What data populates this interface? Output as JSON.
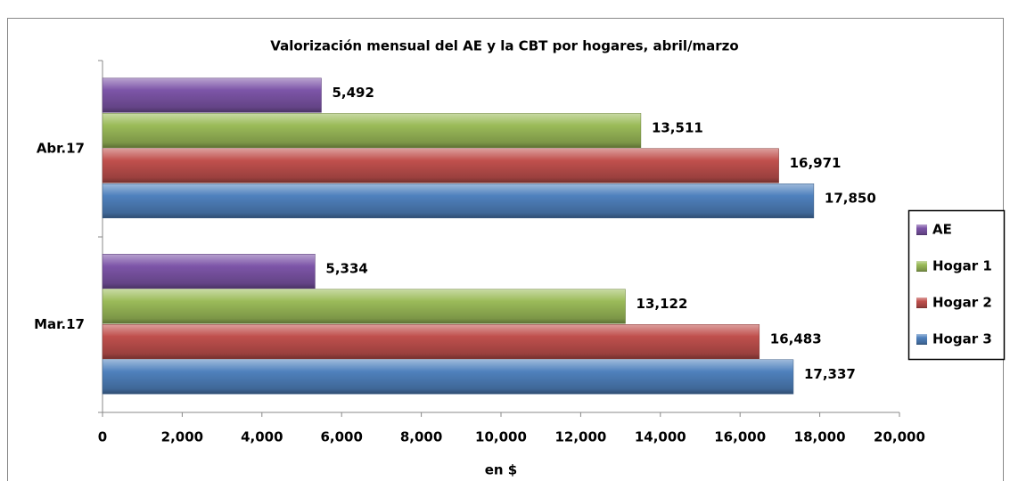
{
  "chart_data": {
    "type": "bar",
    "orientation": "horizontal",
    "title": "Valorización mensual del AE y la CBT por hogares, abril/marzo",
    "x_label": "en $",
    "categories": [
      "Abr.17",
      "Mar.17"
    ],
    "series": [
      {
        "name": "AE",
        "color": "#7d55a8",
        "values": [
          5492,
          5334
        ],
        "value_labels": [
          "5,492",
          "5,334"
        ]
      },
      {
        "name": "Hogar 1",
        "color": "#9bbb59",
        "values": [
          13511,
          13122
        ],
        "value_labels": [
          "13,511",
          "13,122"
        ]
      },
      {
        "name": "Hogar 2",
        "color": "#c0504d",
        "values": [
          16971,
          16483
        ],
        "value_labels": [
          "16,971",
          "16,483"
        ]
      },
      {
        "name": "Hogar 3",
        "color": "#4f81bd",
        "values": [
          17850,
          17337
        ],
        "value_labels": [
          "17,850",
          "17,337"
        ]
      }
    ],
    "xlim": [
      0,
      20000
    ],
    "xticks": [
      0,
      {
        "value": 2000,
        "label": "2,000"
      },
      {
        "value": 4000,
        "label": "4,000"
      },
      {
        "value": 6000,
        "label": "6,000"
      },
      {
        "value": 8000,
        "label": "8,000"
      },
      {
        "value": 10000,
        "label": "10,000"
      },
      {
        "value": 12000,
        "label": "12,000"
      },
      {
        "value": 14000,
        "label": "14,000"
      },
      {
        "value": 16000,
        "label": "16,000"
      },
      {
        "value": 18000,
        "label": "18,000"
      },
      {
        "value": 20000,
        "label": "20,000"
      }
    ],
    "grid": false,
    "legend": "right"
  }
}
